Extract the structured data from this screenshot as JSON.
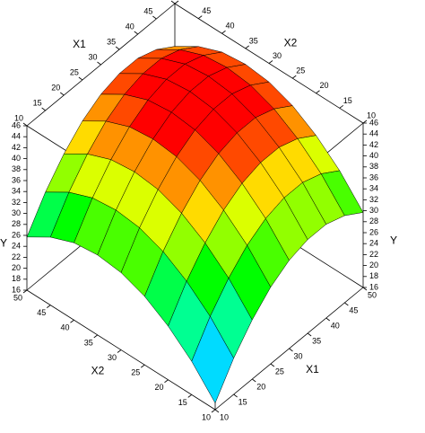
{
  "chart_data": {
    "type": "surface",
    "x1_label": "X1",
    "x2_label": "X2",
    "z_label": "Y",
    "x1": [
      10,
      15,
      20,
      25,
      30,
      35,
      40,
      45,
      50
    ],
    "x2": [
      10,
      15,
      20,
      25,
      30,
      35,
      40,
      45,
      50
    ],
    "z": [
      [
        17.2,
        22.6,
        26.8,
        30.0,
        32.1,
        33.1,
        33.1,
        31.9,
        29.7
      ],
      [
        22.1,
        27.5,
        31.7,
        34.9,
        37.0,
        38.0,
        38.0,
        36.8,
        34.6
      ],
      [
        25.8,
        31.2,
        35.4,
        38.6,
        40.7,
        41.7,
        41.7,
        40.5,
        38.3
      ],
      [
        28.5,
        33.9,
        38.1,
        41.3,
        43.4,
        44.4,
        44.4,
        43.2,
        41.0
      ],
      [
        30.1,
        35.5,
        39.7,
        42.9,
        45.0,
        46.0,
        46.0,
        44.8,
        42.6
      ],
      [
        30.6,
        36.0,
        40.2,
        43.4,
        45.5,
        46.5,
        46.5,
        45.3,
        43.1
      ],
      [
        30.1,
        35.5,
        39.7,
        42.9,
        45.0,
        46.0,
        46.0,
        44.8,
        42.6
      ],
      [
        28.4,
        33.8,
        38.0,
        41.2,
        43.3,
        44.3,
        44.3,
        43.1,
        40.9
      ],
      [
        25.7,
        31.1,
        35.3,
        38.5,
        40.6,
        41.6,
        41.6,
        40.4,
        38.2
      ]
    ],
    "x1lim": [
      10,
      50
    ],
    "x2lim": [
      10,
      50
    ],
    "zlim": [
      16,
      46
    ],
    "x1ticks": [
      10,
      15,
      20,
      25,
      30,
      35,
      40,
      45,
      50
    ],
    "x2ticks": [
      10,
      15,
      20,
      25,
      30,
      35,
      40,
      45,
      50
    ],
    "zticks": [
      16,
      18,
      20,
      22,
      24,
      26,
      28,
      30,
      32,
      34,
      36,
      38,
      40,
      42,
      44,
      46
    ],
    "colormap": "rainbow"
  }
}
